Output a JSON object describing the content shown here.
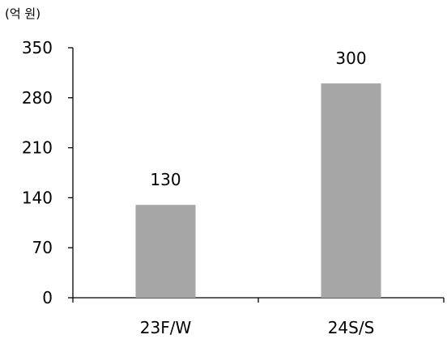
{
  "chart_data": {
    "type": "bar",
    "unit_label": "(억 원)",
    "categories": [
      "23F/W",
      "24S/S"
    ],
    "values": [
      130,
      300
    ],
    "data_labels": [
      "130",
      "300"
    ],
    "y_ticks": [
      "0",
      "70",
      "140",
      "210",
      "280",
      "350"
    ],
    "ylim": [
      0,
      350
    ],
    "bar_color": "#a6a6a6",
    "axis_color": "#000000",
    "grid": false,
    "legend": "none"
  }
}
